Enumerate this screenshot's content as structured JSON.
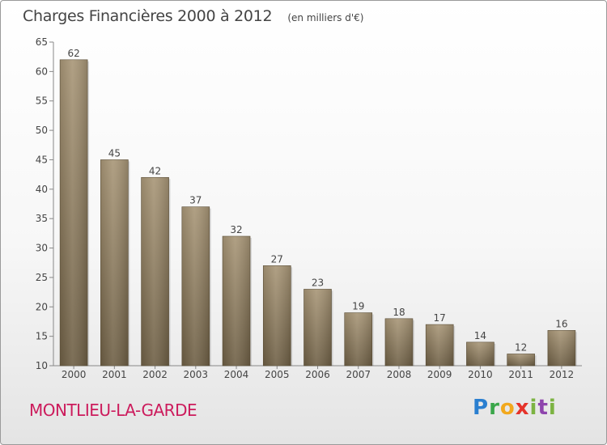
{
  "header": {
    "title": "Charges Financières 2000 à 2012",
    "unit": "(en milliers d'€)"
  },
  "location": "MONTLIEU-LA-GARDE",
  "logo": {
    "text": "Proxiti",
    "colors": [
      "#2a7fd0",
      "#3aa64a",
      "#f2a81d",
      "#e5332a",
      "#7cb342",
      "#8e44ad",
      "#7cb342"
    ]
  },
  "chart_data": {
    "type": "bar",
    "title": "Charges Financières 2000 à 2012",
    "subtitle": "(en milliers d'€)",
    "xlabel": "",
    "ylabel": "",
    "categories": [
      "2000",
      "2001",
      "2002",
      "2003",
      "2004",
      "2005",
      "2006",
      "2007",
      "2008",
      "2009",
      "2010",
      "2011",
      "2012"
    ],
    "values": [
      62,
      45,
      42,
      37,
      32,
      27,
      23,
      19,
      18,
      17,
      14,
      12,
      16
    ],
    "ylim": [
      10,
      65
    ],
    "yticks": [
      10,
      15,
      20,
      25,
      30,
      35,
      40,
      45,
      50,
      55,
      60,
      65
    ],
    "grid": false,
    "legend": "none",
    "bar_color": "#8b7a5e",
    "text_color": "#444444"
  }
}
